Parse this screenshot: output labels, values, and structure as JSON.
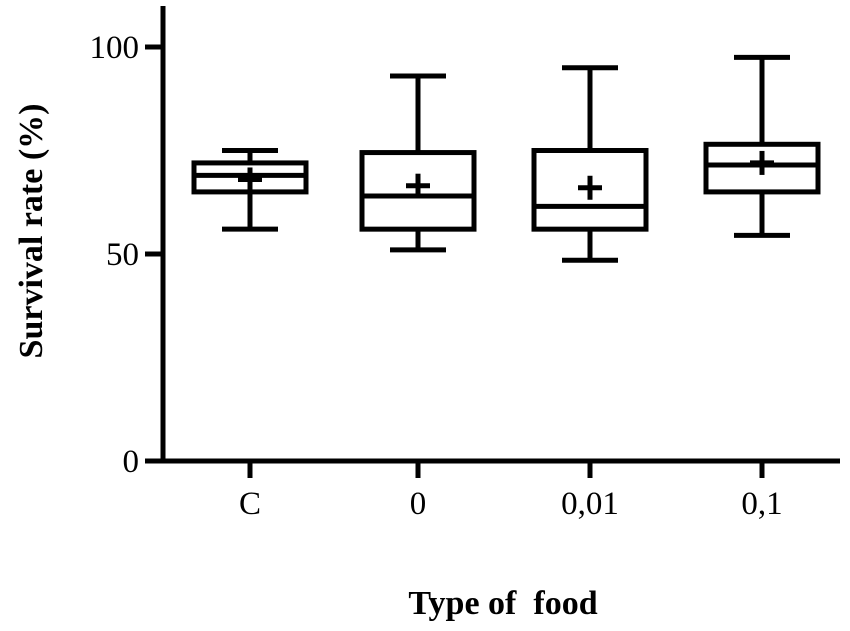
{
  "chart_data": {
    "type": "box",
    "categories": [
      "C",
      "0",
      "0,01",
      "0,1"
    ],
    "xlabel": "Type of  food",
    "ylabel": "Survival rate (%)",
    "ylim": [
      0,
      110
    ],
    "yticks": [
      0,
      50,
      100
    ],
    "grid": false,
    "boxes": [
      {
        "category": "C",
        "min": 56,
        "q1": 65,
        "median": 69,
        "q3": 72,
        "max": 75,
        "mean": 68
      },
      {
        "category": "0",
        "min": 51,
        "q1": 56,
        "median": 64,
        "q3": 74.5,
        "max": 93,
        "mean": 66.5
      },
      {
        "category": "0,01",
        "min": 48.5,
        "q1": 56,
        "median": 61.5,
        "q3": 75,
        "max": 95,
        "mean": 66
      },
      {
        "category": "0,1",
        "min": 54.5,
        "q1": 65,
        "median": 71.5,
        "q3": 76.5,
        "max": 97.5,
        "mean": 72
      }
    ]
  }
}
